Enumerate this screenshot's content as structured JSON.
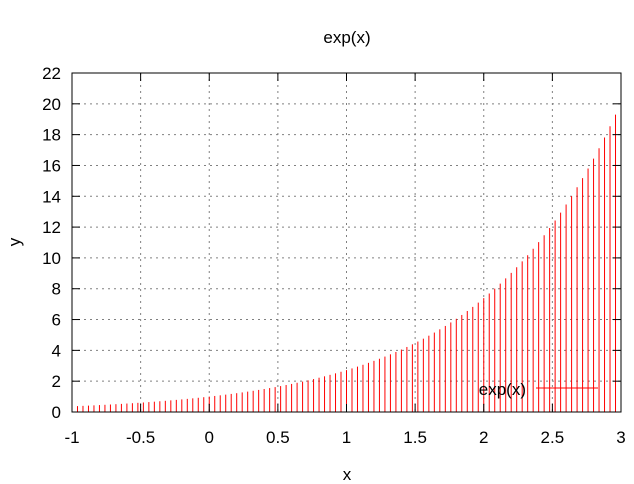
{
  "chart_data": {
    "type": "bar",
    "style": "impulses",
    "title": "exp(x)",
    "xlabel": "x",
    "ylabel": "y",
    "xlim": [
      -1,
      3
    ],
    "ylim": [
      0,
      22
    ],
    "xticks": [
      -1,
      -0.5,
      0,
      0.5,
      1,
      1.5,
      2,
      2.5,
      3
    ],
    "xtick_labels": [
      "-1",
      "-0.5",
      "0",
      "0.5",
      "1",
      "1.5",
      "2",
      "2.5",
      "3"
    ],
    "yticks": [
      0,
      2,
      4,
      6,
      8,
      10,
      12,
      14,
      16,
      18,
      20,
      22
    ],
    "ytick_labels": [
      "0",
      "2",
      "4",
      "6",
      "8",
      "10",
      "12",
      "14",
      "16",
      "18",
      "20",
      "22"
    ],
    "grid": true,
    "legend_position": "bottom-right",
    "series": [
      {
        "name": "exp(x)",
        "color": "#ff0000",
        "x": [
          -1.0,
          -0.96,
          -0.92,
          -0.88,
          -0.84,
          -0.8,
          -0.76,
          -0.72,
          -0.68,
          -0.64,
          -0.6,
          -0.56,
          -0.52,
          -0.48,
          -0.44,
          -0.4,
          -0.36,
          -0.32,
          -0.28,
          -0.24,
          -0.2,
          -0.16,
          -0.12,
          -0.08,
          -0.04,
          0.0,
          0.04,
          0.08,
          0.12,
          0.16,
          0.2,
          0.24,
          0.28,
          0.32,
          0.36,
          0.4,
          0.44,
          0.48,
          0.52,
          0.56,
          0.6,
          0.64,
          0.68,
          0.72,
          0.76,
          0.8,
          0.84,
          0.88,
          0.92,
          0.96,
          1.0,
          1.04,
          1.08,
          1.12,
          1.16,
          1.2,
          1.24,
          1.28,
          1.32,
          1.36,
          1.4,
          1.44,
          1.48,
          1.52,
          1.56,
          1.6,
          1.64,
          1.68,
          1.72,
          1.76,
          1.8,
          1.84,
          1.88,
          1.92,
          1.96,
          2.0,
          2.04,
          2.08,
          2.12,
          2.16,
          2.2,
          2.24,
          2.28,
          2.32,
          2.36,
          2.4,
          2.44,
          2.48,
          2.52,
          2.56,
          2.6,
          2.64,
          2.68,
          2.72,
          2.76,
          2.8,
          2.84,
          2.88,
          2.92,
          2.96
        ],
        "y": [
          0.368,
          0.383,
          0.399,
          0.415,
          0.432,
          0.449,
          0.468,
          0.487,
          0.507,
          0.527,
          0.549,
          0.571,
          0.595,
          0.619,
          0.644,
          0.67,
          0.698,
          0.726,
          0.756,
          0.787,
          0.819,
          0.852,
          0.887,
          0.923,
          0.961,
          1.0,
          1.041,
          1.083,
          1.127,
          1.174,
          1.221,
          1.271,
          1.323,
          1.377,
          1.433,
          1.492,
          1.553,
          1.616,
          1.682,
          1.751,
          1.822,
          1.896,
          1.974,
          2.054,
          2.138,
          2.226,
          2.316,
          2.411,
          2.509,
          2.612,
          2.718,
          2.829,
          2.945,
          3.065,
          3.19,
          3.32,
          3.456,
          3.597,
          3.743,
          3.896,
          4.055,
          4.221,
          4.393,
          4.572,
          4.759,
          4.953,
          5.155,
          5.366,
          5.585,
          5.812,
          6.05,
          6.297,
          6.554,
          6.821,
          7.099,
          7.389,
          7.691,
          8.004,
          8.331,
          8.671,
          9.025,
          9.393,
          9.777,
          10.176,
          10.591,
          11.023,
          11.473,
          11.941,
          12.429,
          12.936,
          13.464,
          14.013,
          14.585,
          15.18,
          15.8,
          16.445,
          17.116,
          17.814,
          18.541,
          19.298
        ]
      }
    ]
  }
}
